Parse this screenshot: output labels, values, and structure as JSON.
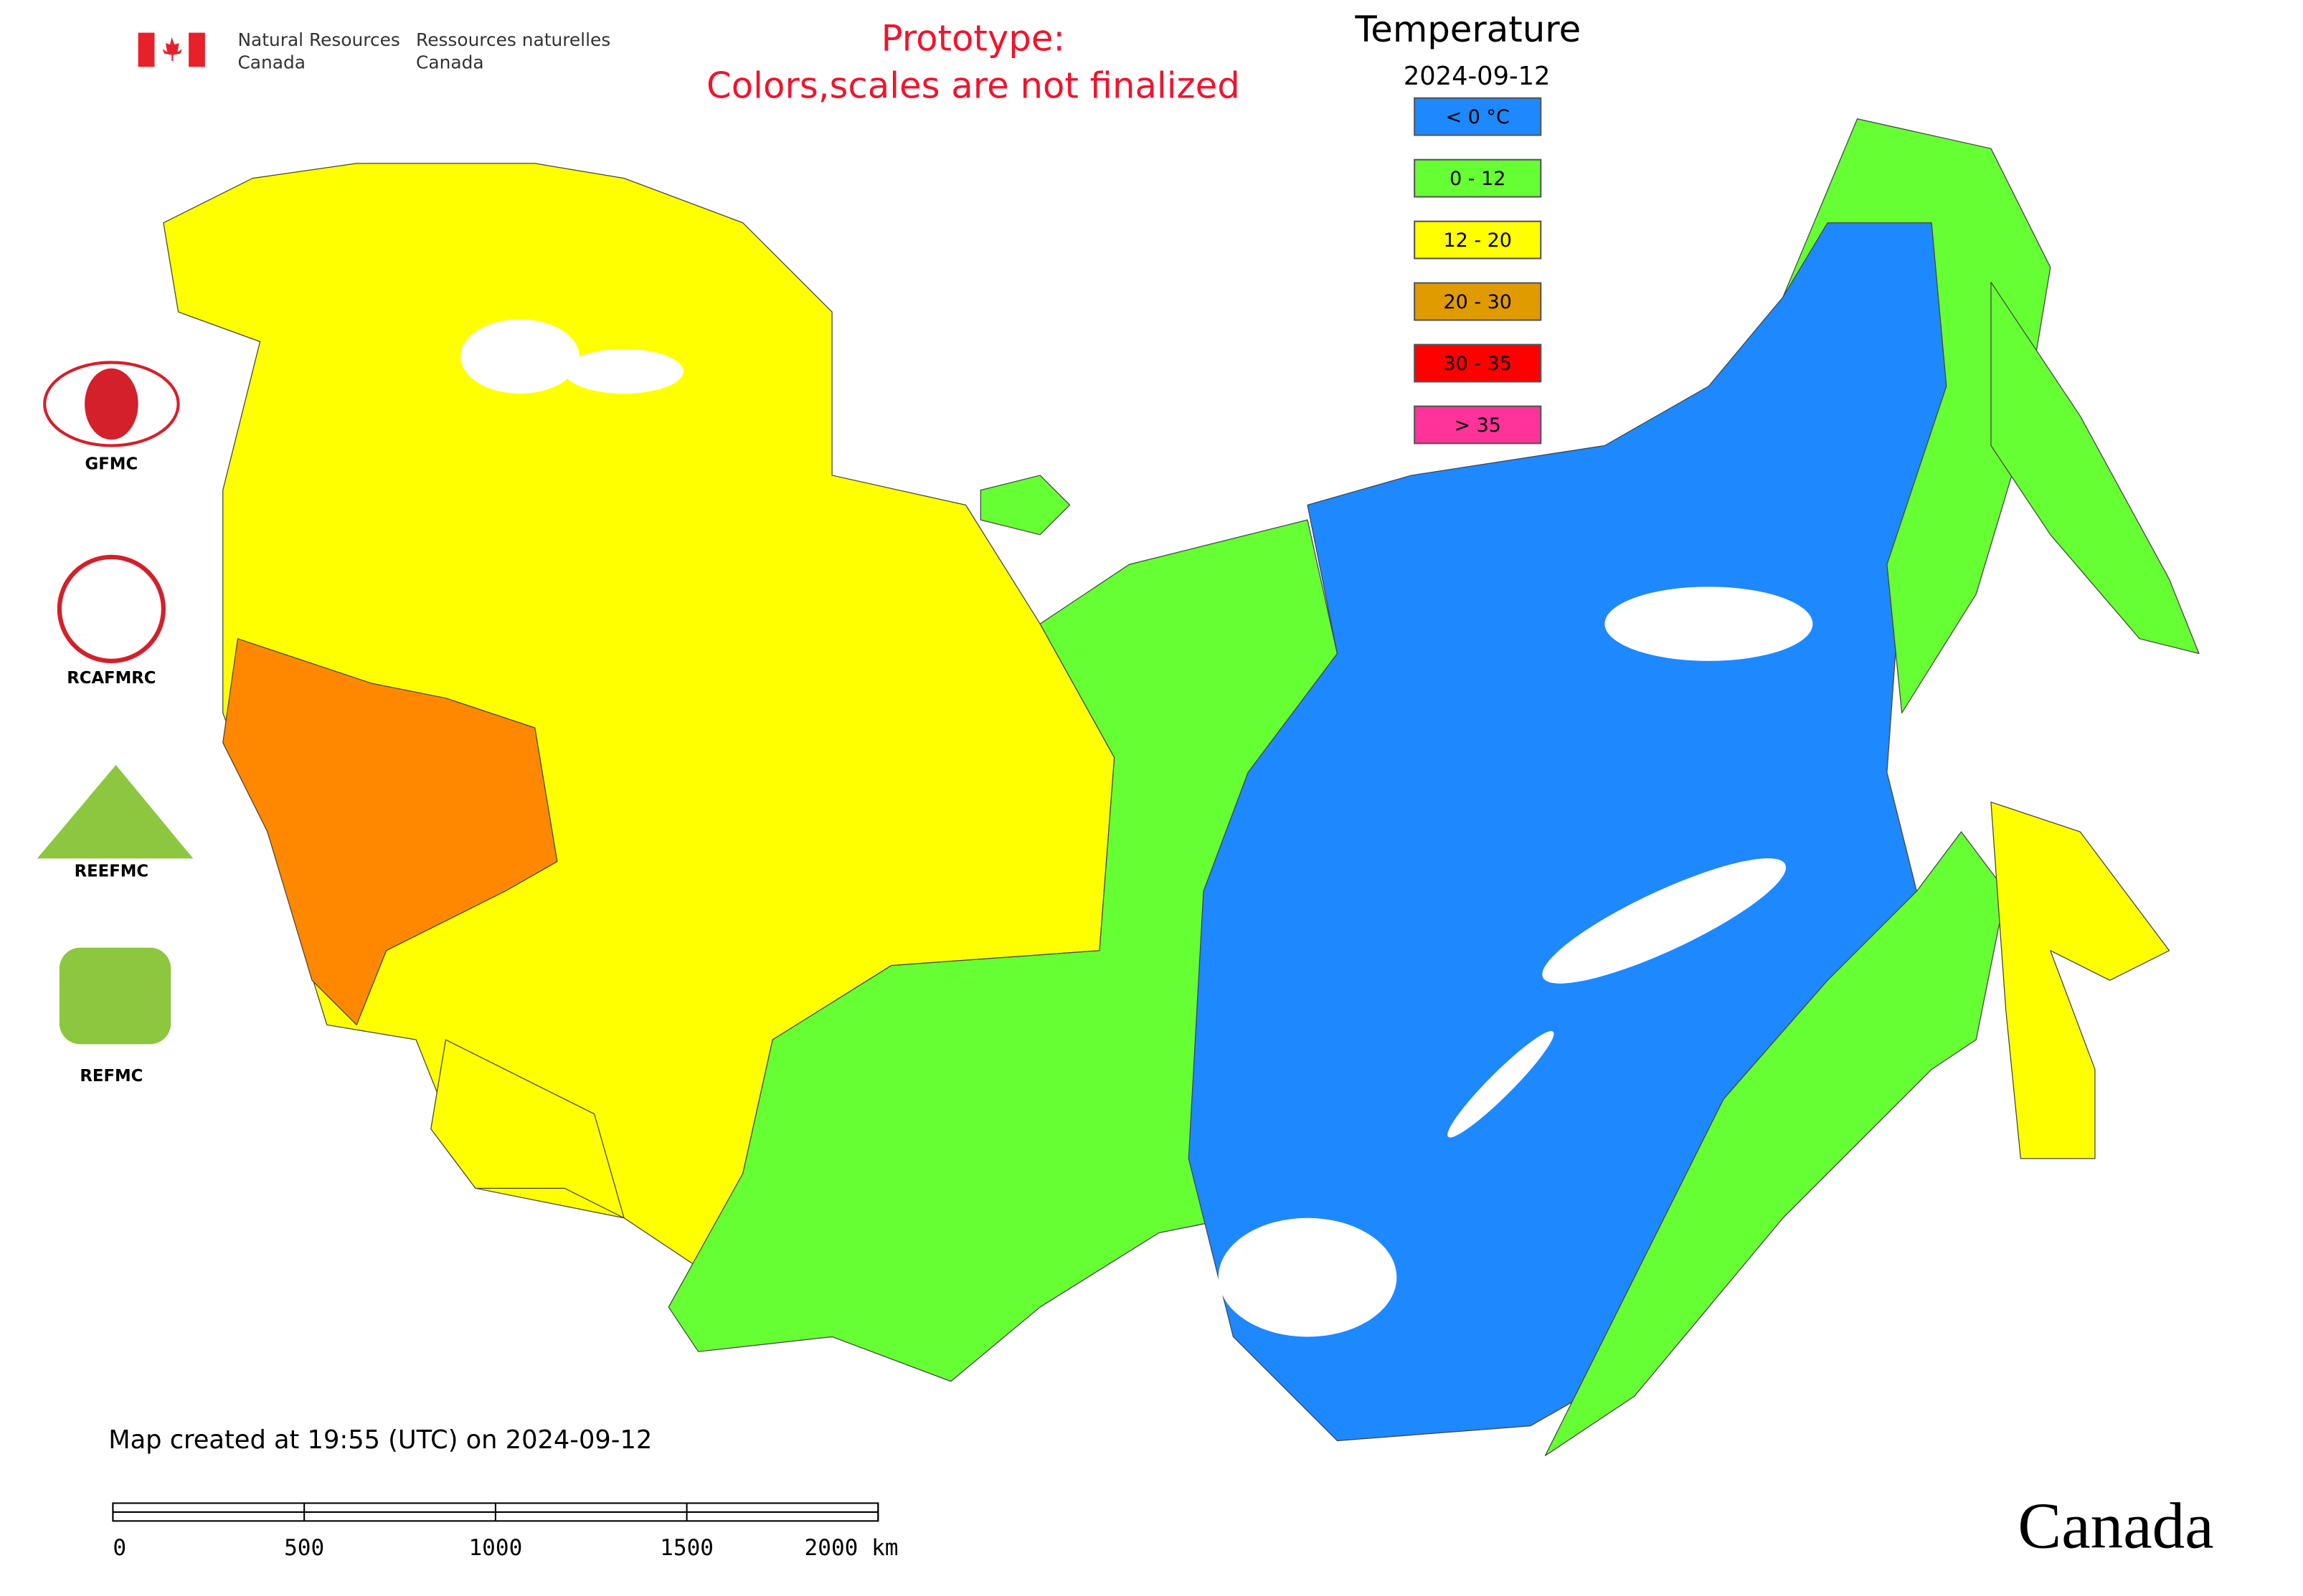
{
  "header": {
    "agency_en_1": "Natural Resources",
    "agency_en_2": "Canada",
    "agency_fr_1": "Ressources naturelles",
    "agency_fr_2": "Canada",
    "notice_1": "Prototype:",
    "notice_2": "Colors,scales are not finalized"
  },
  "legend": {
    "title": "Temperature",
    "date": "2024-09-12",
    "items": [
      {
        "label": "< 0 °C",
        "color": "#1e88ff"
      },
      {
        "label": "0 - 12",
        "color": "#66ff33"
      },
      {
        "label": "12 - 20",
        "color": "#ffff00"
      },
      {
        "label": "20 - 30",
        "color": "#e09b00"
      },
      {
        "label": "30 - 35",
        "color": "#ff0000"
      },
      {
        "label": "> 35",
        "color": "#ff3399"
      }
    ]
  },
  "logos": [
    "GFMC",
    "RCAFMRC",
    "REEFMC",
    "REFMC"
  ],
  "footer": {
    "created": "Map created at 19:55 (UTC) on 2024-09-12",
    "scale_ticks": [
      "0",
      "500",
      "1000",
      "1500",
      "2000 km"
    ],
    "wordmark": "Canada"
  }
}
